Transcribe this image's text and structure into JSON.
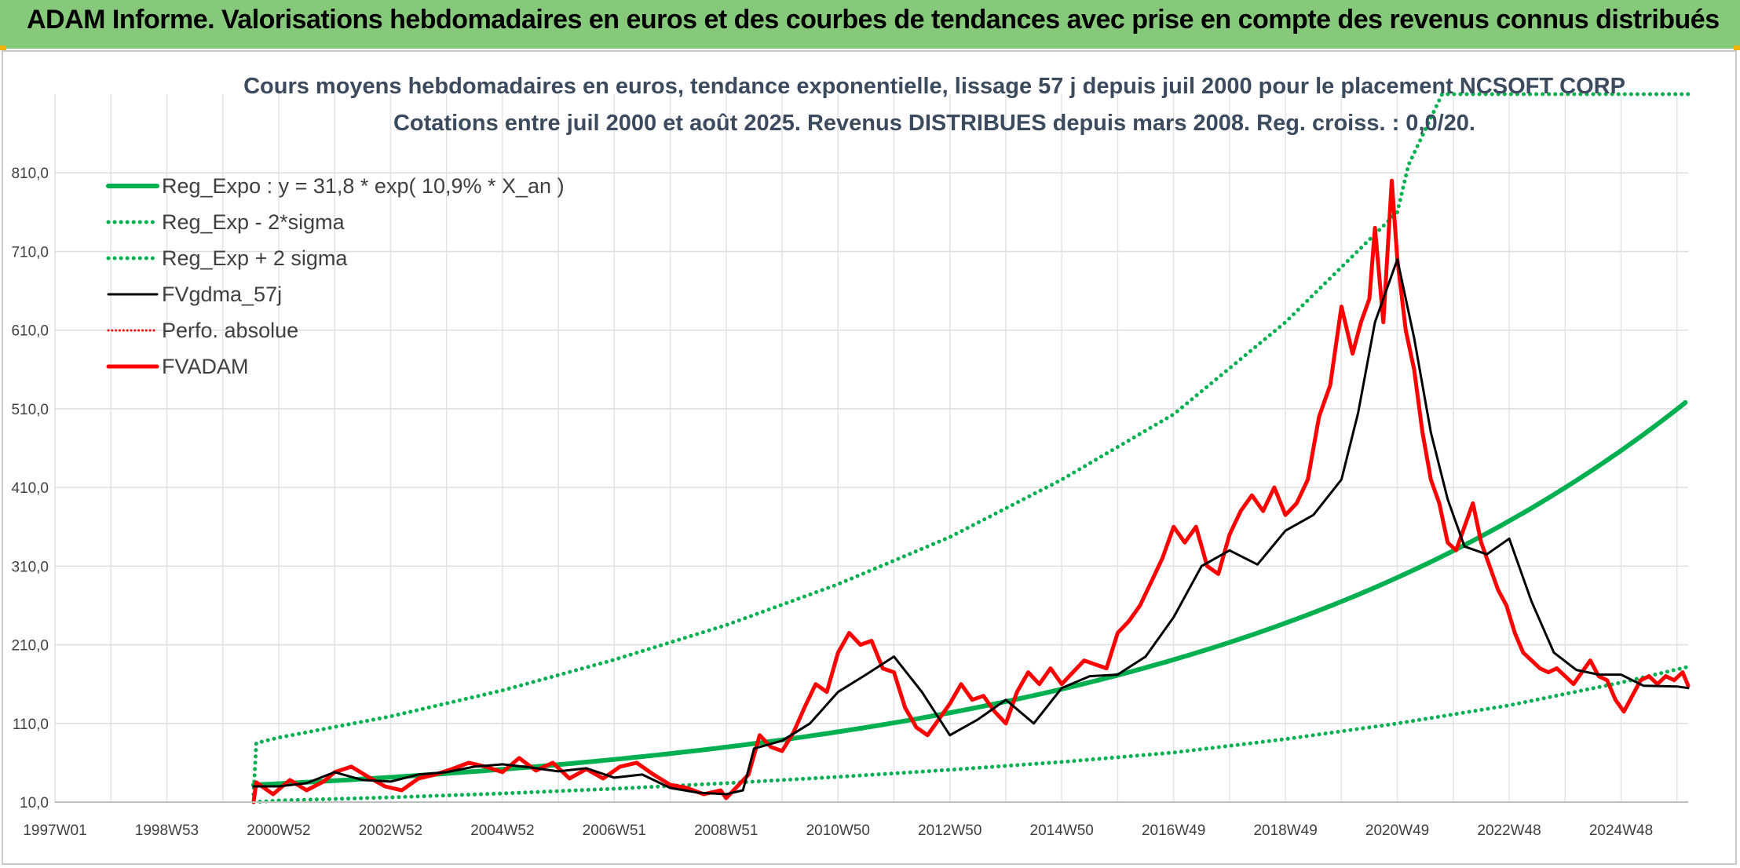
{
  "banner": {
    "title": "ADAM Informe. Valorisations hebdomadaires en euros et des courbes de tendances avec prise en compte des revenus connus distribués",
    "color": "#86c97a",
    "accent_color": "#f0b400"
  },
  "chart_data": {
    "type": "line",
    "title": [
      "Cours moyens hebdomadaires en euros, tendance exponentielle, lissage 57 j depuis juil 2000 pour le placement NCSOFT CORP",
      "Cotations entre juil 2000 et août 2025. Revenus DISTRIBUES depuis mars 2008. Reg. croiss. : 0,0/20."
    ],
    "xlabel": "",
    "ylabel": "",
    "x_ticks": [
      {
        "label": "1997W01",
        "year": 1997.0
      },
      {
        "label": "1998W53",
        "year": 1999.0
      },
      {
        "label": "2000W52",
        "year": 2001.0
      },
      {
        "label": "2002W52",
        "year": 2003.0
      },
      {
        "label": "2004W52",
        "year": 2005.0
      },
      {
        "label": "2006W51",
        "year": 2007.0
      },
      {
        "label": "2008W51",
        "year": 2009.0
      },
      {
        "label": "2010W50",
        "year": 2011.0
      },
      {
        "label": "2012W50",
        "year": 2013.0
      },
      {
        "label": "2014W50",
        "year": 2015.0
      },
      {
        "label": "2016W49",
        "year": 2017.0
      },
      {
        "label": "2018W49",
        "year": 2019.0
      },
      {
        "label": "2020W49",
        "year": 2021.0
      },
      {
        "label": "2022W48",
        "year": 2023.0
      },
      {
        "label": "2024W48",
        "year": 2025.0
      }
    ],
    "xlim": [
      1997.0,
      2026.2
    ],
    "y_ticks": [
      "10,0",
      "110,0",
      "210,0",
      "310,0",
      "410,0",
      "510,0",
      "610,0",
      "710,0",
      "810,0"
    ],
    "ylim": [
      10,
      910
    ],
    "grid": true,
    "legend_position": "top-left",
    "series": [
      {
        "name": "Reg_Expo : y = 31,8 * exp( 10,9% *  X_an )",
        "color": "#00b050",
        "style": "solid",
        "width": 6,
        "formula": {
          "a": 31.8,
          "rate": 0.109,
          "x0": 2000.55,
          "x1": 2026.2
        }
      },
      {
        "name": "Reg_Exp - 2*sigma",
        "color": "#00b050",
        "style": "dotted",
        "width": 5,
        "x": [
          2000.55,
          2001,
          2003,
          2005,
          2007,
          2009,
          2011,
          2013,
          2015,
          2017,
          2019,
          2021,
          2023,
          2025,
          2026.2
        ],
        "y": [
          10,
          12,
          16,
          21,
          27,
          34,
          42,
          51,
          61,
          73,
          90,
          110,
          133,
          162,
          182
        ]
      },
      {
        "name": "Reg_Exp + 2 sigma",
        "color": "#00b050",
        "style": "dotted",
        "width": 5,
        "x": [
          2000.55,
          2000.6,
          2001,
          2003,
          2005,
          2007,
          2009,
          2011,
          2013,
          2015,
          2017,
          2019,
          2021,
          2021.2,
          2021.8,
          2026.2
        ],
        "y": [
          20,
          85,
          92,
          119,
          152,
          191,
          235,
          287,
          347,
          420,
          503,
          620,
          760,
          820,
          910,
          910
        ]
      },
      {
        "name": "FVgdma_57j",
        "color": "#000000",
        "style": "solid",
        "width": 3,
        "x": [
          2000.55,
          2001,
          2001.5,
          2002,
          2002.5,
          2003,
          2003.5,
          2004,
          2004.5,
          2005,
          2005.5,
          2006,
          2006.5,
          2007,
          2007.5,
          2008,
          2008.5,
          2009,
          2009.3,
          2009.5,
          2010,
          2010.5,
          2011,
          2011.5,
          2012,
          2012.5,
          2013,
          2013.5,
          2014,
          2014.5,
          2015,
          2015.5,
          2016,
          2016.5,
          2017,
          2017.5,
          2018,
          2018.5,
          2019,
          2019.5,
          2020,
          2020.3,
          2020.6,
          2021,
          2021.3,
          2021.6,
          2021.9,
          2022.2,
          2022.6,
          2023,
          2023.4,
          2023.8,
          2024.2,
          2024.6,
          2025,
          2025.4,
          2026,
          2026.2
        ],
        "y": [
          30,
          30,
          34,
          48,
          38,
          36,
          45,
          48,
          55,
          58,
          54,
          49,
          53,
          41,
          45,
          28,
          22,
          20,
          25,
          78,
          88,
          110,
          150,
          172,
          195,
          150,
          95,
          115,
          140,
          110,
          155,
          170,
          172,
          195,
          245,
          310,
          330,
          312,
          355,
          375,
          420,
          505,
          620,
          700,
          600,
          480,
          395,
          335,
          325,
          345,
          265,
          200,
          178,
          172,
          172,
          158,
          157,
          155
        ]
      },
      {
        "name": "Perfo. absolue",
        "color": "#ff0000",
        "style": "dotted",
        "width": 3,
        "x": [],
        "y": []
      },
      {
        "name": "FVADAM",
        "color": "#ff0000",
        "style": "solid",
        "width": 5,
        "x": [
          2000.55,
          2000.6,
          2000.9,
          2001.2,
          2001.5,
          2001.8,
          2002.0,
          2002.3,
          2002.6,
          2002.9,
          2003.2,
          2003.5,
          2003.8,
          2004.1,
          2004.4,
          2004.7,
          2005.0,
          2005.3,
          2005.6,
          2005.9,
          2006.2,
          2006.5,
          2006.8,
          2007.1,
          2007.4,
          2007.7,
          2008.0,
          2008.3,
          2008.6,
          2008.9,
          2009.0,
          2009.2,
          2009.4,
          2009.6,
          2009.8,
          2010.0,
          2010.2,
          2010.4,
          2010.6,
          2010.8,
          2011.0,
          2011.2,
          2011.4,
          2011.6,
          2011.8,
          2012.0,
          2012.2,
          2012.4,
          2012.6,
          2012.8,
          2013.0,
          2013.2,
          2013.4,
          2013.6,
          2013.8,
          2014.0,
          2014.2,
          2014.4,
          2014.6,
          2014.8,
          2015.0,
          2015.2,
          2015.4,
          2015.6,
          2015.8,
          2016.0,
          2016.2,
          2016.4,
          2016.6,
          2016.8,
          2017.0,
          2017.2,
          2017.4,
          2017.6,
          2017.8,
          2018.0,
          2018.2,
          2018.4,
          2018.6,
          2018.8,
          2019.0,
          2019.2,
          2019.4,
          2019.6,
          2019.8,
          2020.0,
          2020.2,
          2020.35,
          2020.5,
          2020.6,
          2020.75,
          2020.9,
          2021.0,
          2021.15,
          2021.3,
          2021.45,
          2021.6,
          2021.75,
          2021.9,
          2022.05,
          2022.2,
          2022.35,
          2022.5,
          2022.65,
          2022.8,
          2022.95,
          2023.1,
          2023.25,
          2023.4,
          2023.55,
          2023.7,
          2023.85,
          2024.0,
          2024.15,
          2024.3,
          2024.45,
          2024.6,
          2024.75,
          2024.9,
          2025.05,
          2025.2,
          2025.35,
          2025.5,
          2025.65,
          2025.8,
          2025.95,
          2026.1,
          2026.2
        ],
        "y": [
          10,
          35,
          20,
          38,
          25,
          36,
          48,
          55,
          42,
          30,
          25,
          40,
          45,
          52,
          60,
          55,
          48,
          66,
          50,
          60,
          40,
          52,
          40,
          55,
          60,
          45,
          32,
          28,
          20,
          25,
          15,
          30,
          45,
          95,
          80,
          75,
          98,
          130,
          160,
          150,
          200,
          225,
          210,
          215,
          180,
          175,
          130,
          105,
          95,
          115,
          135,
          160,
          140,
          145,
          125,
          110,
          150,
          175,
          160,
          180,
          160,
          175,
          190,
          185,
          180,
          225,
          240,
          260,
          290,
          320,
          360,
          340,
          360,
          310,
          300,
          350,
          380,
          400,
          380,
          410,
          375,
          390,
          420,
          500,
          540,
          640,
          580,
          620,
          650,
          740,
          620,
          800,
          700,
          610,
          560,
          480,
          420,
          390,
          340,
          330,
          360,
          390,
          340,
          310,
          280,
          260,
          225,
          200,
          190,
          180,
          175,
          180,
          170,
          160,
          175,
          190,
          170,
          165,
          140,
          125,
          145,
          165,
          170,
          160,
          170,
          165,
          175,
          158
        ]
      }
    ]
  }
}
